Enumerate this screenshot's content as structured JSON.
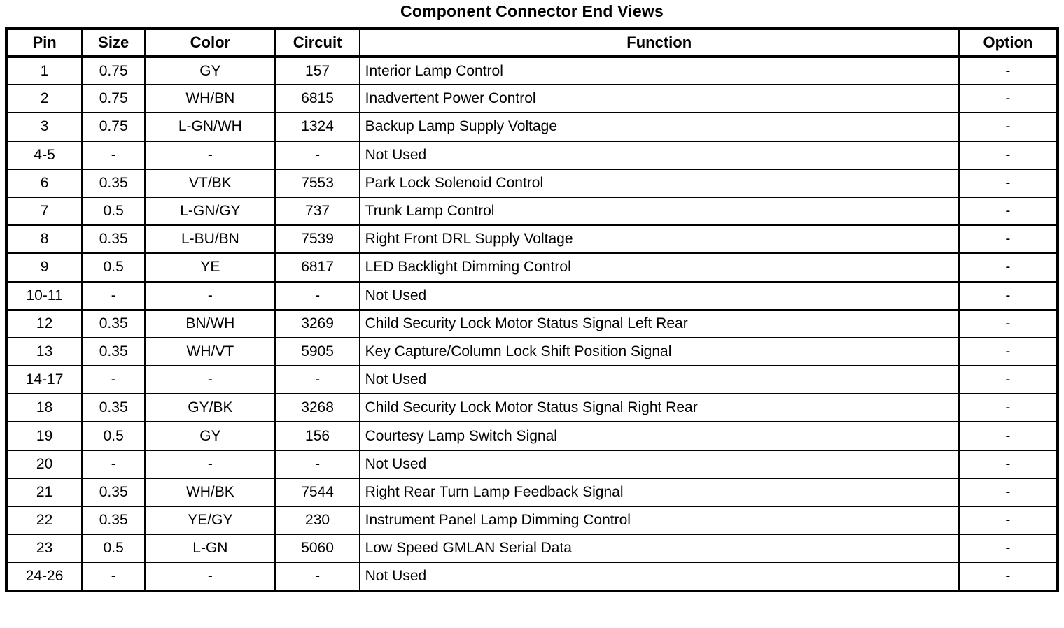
{
  "page": {
    "title": "Component Connector End Views"
  },
  "table": {
    "headers": [
      "Pin",
      "Size",
      "Color",
      "Circuit",
      "Function",
      "Option"
    ],
    "column_alignments": [
      "center",
      "center",
      "center",
      "center",
      "left",
      "center"
    ],
    "column_keys": [
      "pin",
      "size",
      "color",
      "circuit",
      "function",
      "option"
    ],
    "rows": [
      [
        "1",
        "0.75",
        "GY",
        "157",
        "Interior Lamp Control",
        "-"
      ],
      [
        "2",
        "0.75",
        "WH/BN",
        "6815",
        "Inadvertent Power Control",
        "-"
      ],
      [
        "3",
        "0.75",
        "L-GN/WH",
        "1324",
        "Backup Lamp Supply Voltage",
        "-"
      ],
      [
        "4-5",
        "-",
        "-",
        "-",
        "Not Used",
        "-"
      ],
      [
        "6",
        "0.35",
        "VT/BK",
        "7553",
        "Park Lock Solenoid Control",
        "-"
      ],
      [
        "7",
        "0.5",
        "L-GN/GY",
        "737",
        "Trunk Lamp Control",
        "-"
      ],
      [
        "8",
        "0.35",
        "L-BU/BN",
        "7539",
        "Right Front DRL Supply Voltage",
        "-"
      ],
      [
        "9",
        "0.5",
        "YE",
        "6817",
        "LED Backlight Dimming Control",
        "-"
      ],
      [
        "10-11",
        "-",
        "-",
        "-",
        "Not Used",
        "-"
      ],
      [
        "12",
        "0.35",
        "BN/WH",
        "3269",
        "Child Security Lock Motor Status Signal Left Rear",
        "-"
      ],
      [
        "13",
        "0.35",
        "WH/VT",
        "5905",
        "Key Capture/Column Lock Shift Position Signal",
        "-"
      ],
      [
        "14-17",
        "-",
        "-",
        "-",
        "Not Used",
        "-"
      ],
      [
        "18",
        "0.35",
        "GY/BK",
        "3268",
        "Child Security Lock Motor Status Signal Right Rear",
        "-"
      ],
      [
        "19",
        "0.5",
        "GY",
        "156",
        "Courtesy Lamp Switch Signal",
        "-"
      ],
      [
        "20",
        "-",
        "-",
        "-",
        "Not Used",
        "-"
      ],
      [
        "21",
        "0.35",
        "WH/BK",
        "7544",
        "Right Rear Turn Lamp Feedback Signal",
        "-"
      ],
      [
        "22",
        "0.35",
        "YE/GY",
        "230",
        "Instrument Panel Lamp Dimming Control",
        "-"
      ],
      [
        "23",
        "0.5",
        "L-GN",
        "5060",
        "Low Speed GMLAN Serial Data",
        "-"
      ],
      [
        "24-26",
        "-",
        "-",
        "-",
        "Not Used",
        "-"
      ]
    ],
    "colors": {
      "border": "#000000",
      "background": "#ffffff",
      "text": "#000000"
    }
  }
}
